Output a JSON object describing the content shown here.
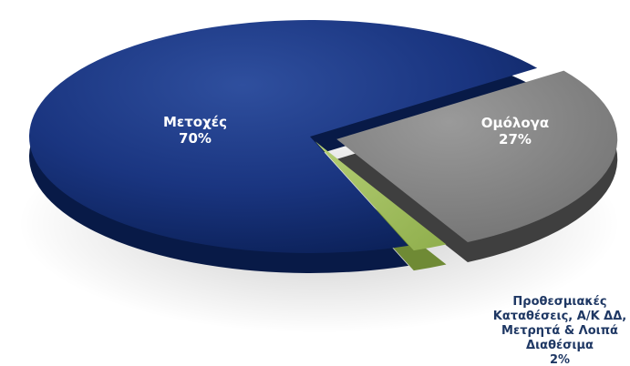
{
  "chart_data": {
    "type": "pie",
    "title": "",
    "slices": [
      {
        "label": "Μετοχές",
        "value": 70,
        "value_label": "70%",
        "color": "#0f2a6b",
        "label_color": "#ffffff"
      },
      {
        "label": "Ομόλογα",
        "value": 27,
        "value_label": "27%",
        "color": "#7f7f7f",
        "label_color": "#ffffff"
      },
      {
        "label_lines": [
          "Προθεσμιακές",
          "Καταθέσεις, Α/Κ ΔΔ,",
          "Μετρητά & Λοιπά",
          "Διαθέσιμα"
        ],
        "value": 2,
        "value_label": "2%",
        "color": "#9bbb59",
        "label_color": "#1f3864"
      }
    ],
    "legend": "none",
    "style": "3d-exploded"
  }
}
